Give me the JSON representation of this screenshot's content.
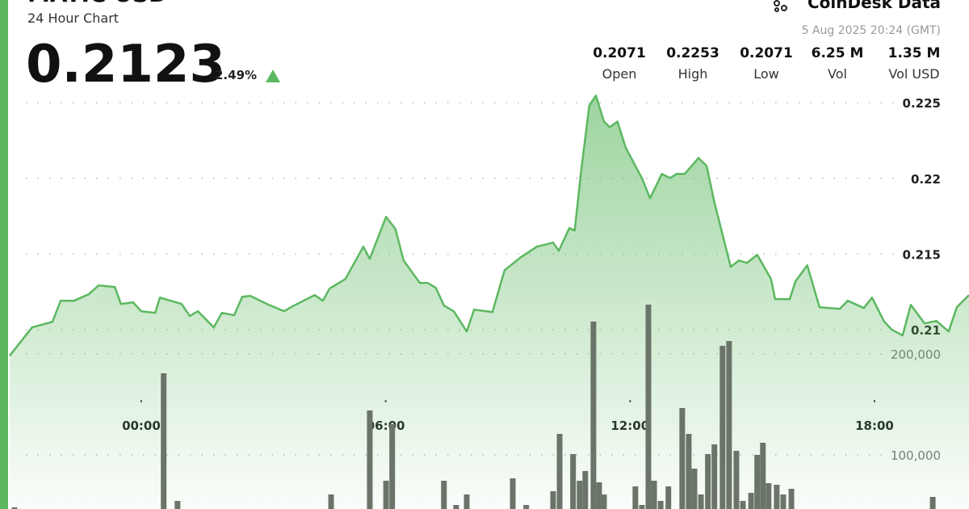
{
  "header": {
    "title": "MATIC USD",
    "subtitle": "24 Hour Chart",
    "price": "0.2123",
    "change": "2.49%",
    "brand": "CoinDesk Data",
    "timestamp": "5 Aug 2025 20:24 (GMT)",
    "stats": [
      {
        "value": "0.2071",
        "label": "Open"
      },
      {
        "value": "0.2253",
        "label": "High"
      },
      {
        "value": "0.2071",
        "label": "Low"
      },
      {
        "value": "6.25 M",
        "label": "Vol"
      },
      {
        "value": "1.35 M",
        "label": "Vol USD"
      }
    ]
  },
  "chart_data": {
    "type": "combo",
    "xlim": [
      -3.23,
      20.32
    ],
    "xticks": [
      {
        "value": 0,
        "label": "00:00"
      },
      {
        "value": 6,
        "label": "06:00"
      },
      {
        "value": 12,
        "label": "12:00"
      },
      {
        "value": 18,
        "label": "18:00"
      }
    ],
    "ylim": [
      0.19817,
      0.22591
    ],
    "yticks": [
      0.21,
      0.215,
      0.22,
      0.225
    ],
    "y2lim": [
      46400,
      462400
    ],
    "y2ticks": [
      {
        "value": 100000,
        "label": "100,000"
      },
      {
        "value": 200000,
        "label": "200,000"
      }
    ],
    "grid": true,
    "series": [
      {
        "type": "area",
        "color": "#5cb860",
        "x": [
          -3.23,
          -2.68,
          -2.18,
          -1.98,
          -1.65,
          -1.29,
          -1.05,
          -0.65,
          -0.5,
          -0.2,
          0,
          0.34,
          0.46,
          0.99,
          1.19,
          1.39,
          1.78,
          1.98,
          2.28,
          2.48,
          2.68,
          3.13,
          3.51,
          3.67,
          4.06,
          4.26,
          4.46,
          4.62,
          5.01,
          5.45,
          5.61,
          6.01,
          6.24,
          6.44,
          6.84,
          7.04,
          7.23,
          7.43,
          7.67,
          7.99,
          8.17,
          8.62,
          8.92,
          9.32,
          9.71,
          10.11,
          10.25,
          10.51,
          10.64,
          10.8,
          11,
          11.16,
          11.36,
          11.5,
          11.69,
          11.89,
          12.29,
          12.49,
          12.78,
          12.98,
          13.14,
          13.34,
          13.68,
          13.88,
          14.07,
          14.47,
          14.67,
          14.87,
          15.12,
          15.46,
          15.56,
          15.92,
          16.06,
          16.35,
          16.65,
          17.15,
          17.34,
          17.74,
          17.94,
          18.24,
          18.43,
          18.69,
          18.89,
          19.23,
          19.52,
          19.82,
          20.02,
          20.32
        ],
        "values": [
          0.20829,
          0.21016,
          0.21053,
          0.21192,
          0.21192,
          0.21235,
          0.21293,
          0.21283,
          0.21171,
          0.21181,
          0.21123,
          0.21112,
          0.21213,
          0.21171,
          0.21091,
          0.21123,
          0.21016,
          0.21112,
          0.21096,
          0.21219,
          0.21224,
          0.21165,
          0.21123,
          0.21149,
          0.21203,
          0.21229,
          0.21192,
          0.21272,
          0.21336,
          0.21549,
          0.21469,
          0.21746,
          0.21666,
          0.21458,
          0.21309,
          0.21309,
          0.21277,
          0.2116,
          0.21123,
          0.20989,
          0.21133,
          0.21117,
          0.21394,
          0.2148,
          0.21549,
          0.21576,
          0.21522,
          0.21672,
          0.21656,
          0.22055,
          0.22482,
          0.22546,
          0.22375,
          0.22338,
          0.22375,
          0.22205,
          0.22002,
          0.21869,
          0.22029,
          0.22002,
          0.22029,
          0.22029,
          0.22135,
          0.22082,
          0.21842,
          0.21416,
          0.21458,
          0.21442,
          0.21496,
          0.21336,
          0.21203,
          0.21203,
          0.2132,
          0.21426,
          0.21149,
          0.21139,
          0.21192,
          0.21144,
          0.21213,
          0.21053,
          0.21,
          0.20963,
          0.21165,
          0.21043,
          0.21059,
          0.20989,
          0.21149,
          0.21229
        ]
      },
      {
        "type": "bar",
        "axis": "y2",
        "color": "#6b7468",
        "x": [
          -3.11,
          0.55,
          0.89,
          4.66,
          5.61,
          6.01,
          6.16,
          7.43,
          7.73,
          7.99,
          9.12,
          9.45,
          10.11,
          10.27,
          10.6,
          10.76,
          10.9,
          11.1,
          11.24,
          11.36,
          12.13,
          12.29,
          12.45,
          12.59,
          12.75,
          12.94,
          13.28,
          13.44,
          13.58,
          13.74,
          13.91,
          14.07,
          14.27,
          14.43,
          14.61,
          14.77,
          14.97,
          15.12,
          15.26,
          15.4,
          15.6,
          15.76,
          15.96,
          19.43
        ],
        "values": [
          48000,
          180800,
          54400,
          60800,
          144000,
          74400,
          130400,
          74400,
          50400,
          60800,
          76800,
          50400,
          64000,
          120800,
          100800,
          74400,
          84000,
          232000,
          72800,
          60800,
          68800,
          50400,
          248800,
          74400,
          54400,
          68800,
          146400,
          120800,
          86400,
          60800,
          100800,
          110400,
          208000,
          212800,
          104000,
          54400,
          62400,
          100000,
          112000,
          72000,
          70400,
          60800,
          66400,
          58400
        ]
      }
    ]
  }
}
